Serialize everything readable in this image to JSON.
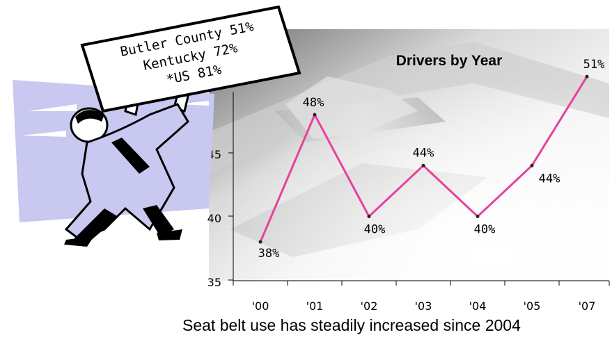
{
  "caption": "Seat belt use has steadily increased since 2004",
  "sign": {
    "lines": [
      "Butler County 51%",
      "Kentucky 72%",
      "*US 81%"
    ]
  },
  "colors": {
    "line": "#e8409a",
    "axis": "#000000",
    "sign_border": "#000000",
    "figure_fill": "#c8c8f0"
  },
  "chart_data": {
    "type": "line",
    "title": "Drivers by Year",
    "categories": [
      "'00",
      "'01",
      "'02",
      "'03",
      "'04",
      "'05",
      "'07"
    ],
    "series": [
      {
        "values": [
          38,
          48,
          40,
          44,
          40,
          44,
          51
        ],
        "labels": [
          "38%",
          "48%",
          "40%",
          "44%",
          "40%",
          "44%",
          "51%"
        ]
      }
    ],
    "yticks": [
      "35",
      "40",
      "45"
    ],
    "ylim": [
      35,
      52
    ],
    "grid": false,
    "background": "seat belt buckle photo"
  }
}
